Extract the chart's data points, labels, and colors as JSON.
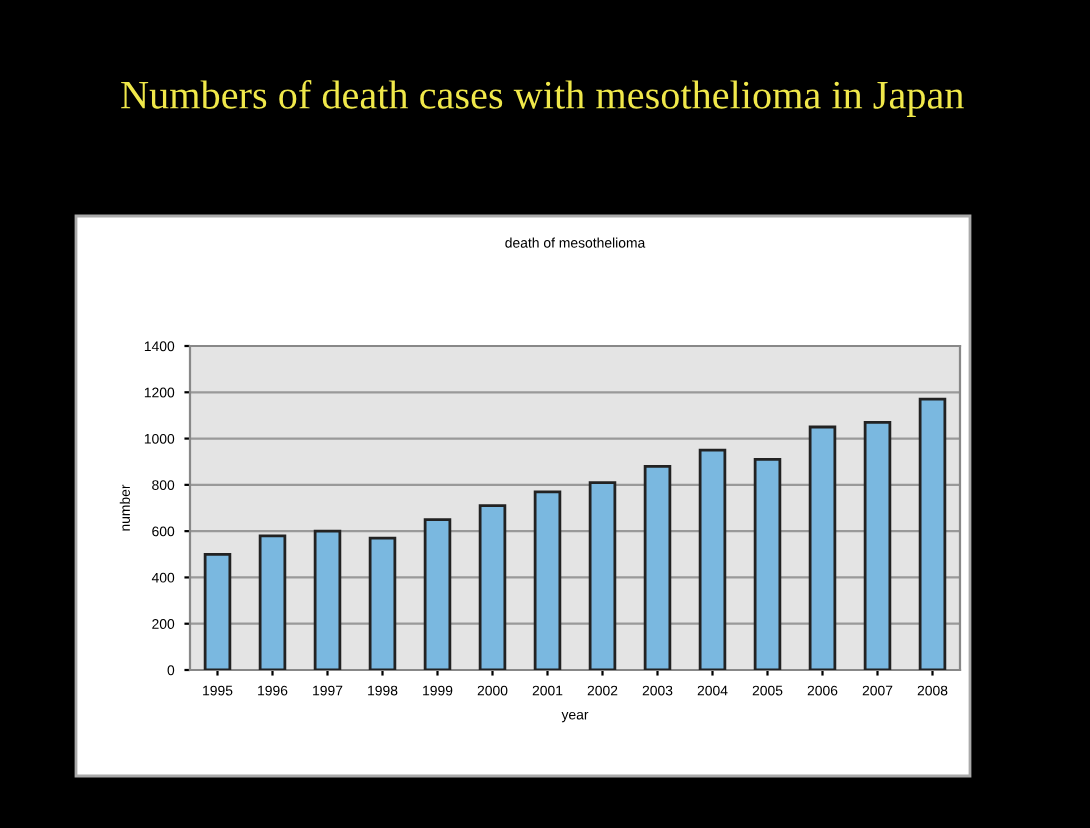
{
  "chart_data": {
    "type": "bar",
    "title": "Numbers of death cases with mesothelioma in Japan",
    "subtitle": "death of mesothelioma",
    "xlabel": "year",
    "ylabel": "number",
    "categories": [
      "1995",
      "1996",
      "1997",
      "1998",
      "1999",
      "2000",
      "2001",
      "2002",
      "2003",
      "2004",
      "2005",
      "2006",
      "2007",
      "2008"
    ],
    "values": [
      500,
      580,
      600,
      570,
      650,
      710,
      770,
      810,
      880,
      950,
      910,
      1050,
      1070,
      1170
    ],
    "color": "#7ab8e0",
    "ylim": [
      0,
      1400
    ],
    "yticks": [
      0,
      200,
      400,
      600,
      800,
      1000,
      1200,
      1400
    ],
    "grid": "y"
  }
}
